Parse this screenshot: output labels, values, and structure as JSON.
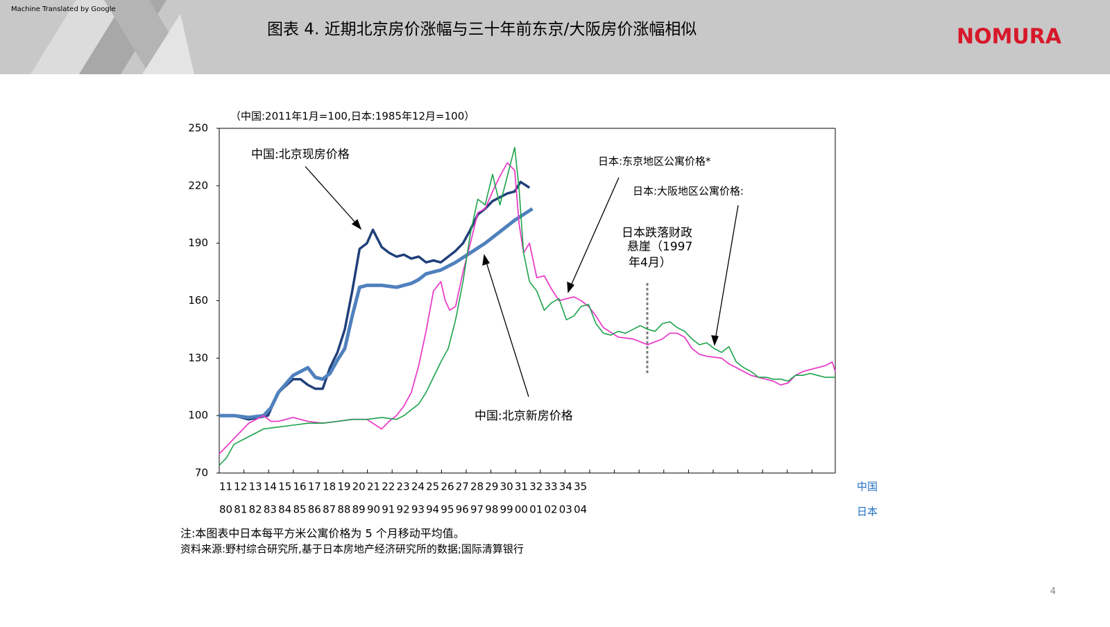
{
  "header": {
    "watermark": "Machine Translated by Google",
    "title": "图表 4. 近期北京房价涨幅与三十年前东京/大阪房价涨幅相似",
    "logo": "NOMURA"
  },
  "chart_data": {
    "type": "line",
    "unit_note": "（中国:2011年1月=100,日本:1985年12月=100）",
    "ylim": [
      70,
      250
    ],
    "yticks": [
      70,
      100,
      130,
      160,
      190,
      220,
      250
    ],
    "xlim": [
      0,
      41.7
    ],
    "x_rows": [
      {
        "name": "中国",
        "categories": [
          "11",
          "12",
          "13",
          "14",
          "15",
          "16",
          "17",
          "18",
          "19",
          "20",
          "21",
          "22",
          "23",
          "24",
          "25",
          "26",
          "27",
          "28",
          "29",
          "30",
          "31",
          "32",
          "33",
          "34",
          "35"
        ]
      },
      {
        "name": "日本",
        "categories": [
          "80",
          "81",
          "82",
          "83",
          "84",
          "85",
          "86",
          "87",
          "88",
          "89",
          "90",
          "91",
          "92",
          "93",
          "94",
          "95",
          "96",
          "97",
          "98",
          "99",
          "00",
          "01",
          "02",
          "03",
          "04"
        ]
      }
    ],
    "series": [
      {
        "name": "中国:北京现房价格",
        "color": "#1f3f7a",
        "width": 3.5,
        "x": [
          0,
          1,
          2,
          3.3,
          4,
          5,
          5.5,
          6,
          6.5,
          7,
          7.5,
          8,
          8.5,
          9,
          9.5,
          10,
          10.4,
          11,
          11.5,
          12,
          12.5,
          13,
          13.5,
          14,
          14.5,
          15,
          15.5,
          16,
          16.5,
          17,
          17.5,
          18,
          18.5,
          19,
          19.5,
          20,
          20.4,
          21
        ],
        "values": [
          100,
          100,
          98,
          100,
          112,
          119,
          119,
          116,
          114,
          114,
          125,
          133,
          145,
          165,
          187,
          190,
          197,
          188,
          185,
          183,
          184,
          182,
          183,
          180,
          181,
          180,
          183,
          186,
          190,
          197,
          205,
          208,
          212,
          214,
          216,
          217,
          222,
          219
        ]
      },
      {
        "name": "中国:北京新房价格",
        "color": "#4f81bd",
        "width": 5,
        "x": [
          0,
          1,
          2,
          3,
          3.5,
          4,
          5,
          6,
          6.5,
          7,
          7.5,
          8,
          8.5,
          9,
          9.5,
          10,
          11,
          12,
          13,
          13.5,
          14,
          15,
          16,
          17,
          18,
          19,
          20,
          21,
          21.2
        ],
        "values": [
          100,
          100,
          99,
          100,
          104,
          112,
          121,
          125,
          120,
          119,
          122,
          129,
          135,
          152,
          167,
          168,
          168,
          167,
          169,
          171,
          174,
          176,
          180,
          185,
          190,
          196,
          202,
          207,
          208
        ]
      },
      {
        "name": "日本:东京地区公寓价格*",
        "color": "#e83ec8",
        "width": 1.8,
        "x": [
          0,
          1,
          2,
          3,
          3.5,
          4,
          5,
          6,
          7,
          8,
          9,
          10,
          11,
          11.5,
          12,
          12.5,
          13,
          13.5,
          14,
          14.5,
          15,
          15.3,
          15.6,
          16,
          16.5,
          17,
          17.5,
          18,
          18.5,
          19,
          19.5,
          20,
          20.3,
          20.6,
          21,
          21.5,
          22,
          22.5,
          23,
          23.5,
          24,
          24.5,
          25,
          25.5,
          26,
          27,
          28,
          29,
          30,
          30.5,
          31,
          31.5,
          32,
          32.5,
          33,
          34,
          34.5,
          35,
          36,
          37,
          37.5,
          38,
          38.5,
          39,
          39.5,
          40,
          40.5,
          41,
          41.5,
          41.7
        ],
        "values": [
          80,
          88,
          96,
          100,
          97,
          97,
          99,
          97,
          96,
          97,
          98,
          98,
          93,
          97,
          100,
          105,
          112,
          126,
          144,
          165,
          170,
          160,
          155,
          157,
          175,
          190,
          206,
          208,
          217,
          225,
          232,
          228,
          200,
          185,
          190,
          172,
          173,
          166,
          160,
          161,
          162,
          160,
          157,
          152,
          146,
          141,
          140,
          137,
          140,
          143,
          143,
          141,
          135,
          132,
          131,
          130,
          127,
          125,
          121,
          119,
          118,
          116,
          117,
          121,
          123,
          124,
          125,
          126,
          128,
          123
        ]
      },
      {
        "name": "日本:大阪地区公寓价格:",
        "color": "#1aa34a",
        "width": 1.6,
        "x": [
          0,
          0.5,
          1,
          2,
          3,
          4,
          5,
          6,
          7,
          8,
          9,
          10,
          11,
          12,
          12.5,
          13,
          13.5,
          14,
          14.5,
          15,
          15.5,
          16,
          16.5,
          17,
          17.5,
          18,
          18.5,
          19,
          19.5,
          20,
          20.3,
          20.6,
          21,
          21.5,
          22,
          22.5,
          23,
          23.5,
          24,
          24.5,
          25,
          25.5,
          26,
          26.5,
          27,
          27.5,
          28,
          28.5,
          29,
          29.5,
          30,
          30.5,
          31,
          31.5,
          32,
          32.5,
          33,
          33.5,
          34,
          34.5,
          35,
          35.5,
          36,
          36.5,
          37,
          37.5,
          38,
          38.5,
          39,
          39.5,
          40,
          40.5,
          41,
          41.7
        ],
        "values": [
          74,
          78,
          85,
          89,
          93,
          94,
          95,
          96,
          96,
          97,
          98,
          98,
          99,
          98,
          100,
          103,
          106,
          112,
          120,
          128,
          135,
          150,
          170,
          195,
          213,
          210,
          226,
          210,
          225,
          240,
          218,
          185,
          170,
          165,
          155,
          159,
          161,
          150,
          152,
          157,
          158,
          148,
          143,
          142,
          144,
          143,
          145,
          147,
          145,
          144,
          148,
          149,
          146,
          144,
          140,
          137,
          138,
          135,
          133,
          136,
          128,
          125,
          123,
          120,
          120,
          119,
          119,
          118,
          121,
          121,
          122,
          121,
          120,
          120
        ]
      }
    ],
    "annotations": {
      "event": [
        "日本跌落财政",
        "悬崖（1997",
        "年4月）"
      ]
    }
  },
  "notes": [
    "注:本图表中日本每平方米公寓价格为 5 个月移动平均值。",
    "资料来源:野村综合研究所,基于日本房地产经济研究所的数据;国际清算银行"
  ],
  "page_number": "4"
}
